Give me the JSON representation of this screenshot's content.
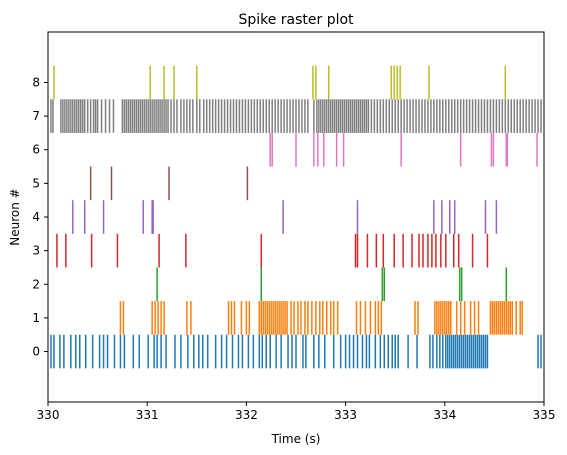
{
  "chart_data": {
    "type": "raster",
    "title": "Spike raster plot",
    "xlabel": "Time (s)",
    "ylabel": "Neuron #",
    "xlim": [
      330,
      335
    ],
    "ylim": [
      -1.5,
      9.5
    ],
    "x_ticks": [
      "330",
      "331",
      "332",
      "333",
      "334",
      "335"
    ],
    "y_ticks": [
      "0",
      "1",
      "2",
      "3",
      "4",
      "5",
      "6",
      "7",
      "8"
    ],
    "grid": false,
    "series": [
      {
        "color": "#1f77b4",
        "spikes": [
          330.03,
          330.06,
          330.12,
          330.16,
          330.23,
          330.28,
          330.32,
          330.38,
          330.45,
          330.52,
          330.56,
          330.6,
          330.67,
          330.73,
          330.77,
          330.86,
          330.92,
          331.01,
          331.07,
          331.1,
          331.14,
          331.19,
          331.28,
          331.34,
          331.41,
          331.47,
          331.52,
          331.56,
          331.61,
          331.69,
          331.75,
          331.8,
          331.86,
          331.92,
          331.96,
          332.02,
          332.07,
          332.13,
          332.16,
          332.2,
          332.24,
          332.3,
          332.35,
          332.42,
          332.46,
          332.5,
          332.57,
          332.6,
          332.68,
          332.73,
          332.79,
          332.88,
          332.95,
          333.0,
          333.04,
          333.08,
          333.12,
          333.17,
          333.21,
          333.24,
          333.3,
          333.35,
          333.39,
          333.43,
          333.47,
          333.5,
          333.53,
          333.63,
          333.72,
          333.85,
          333.88,
          333.92,
          333.95,
          333.98,
          334.01,
          334.03,
          334.05,
          334.07,
          334.09,
          334.11,
          334.13,
          334.15,
          334.17,
          334.19,
          334.21,
          334.23,
          334.25,
          334.27,
          334.29,
          334.31,
          334.33,
          334.35,
          334.37,
          334.39,
          334.41,
          334.43,
          334.94,
          334.97
        ]
      },
      {
        "color": "#ff7f0e",
        "spikes": [
          330.73,
          330.76,
          331.05,
          331.08,
          331.11,
          331.14,
          331.17,
          331.4,
          331.44,
          331.82,
          331.85,
          331.88,
          331.95,
          332.0,
          332.03,
          332.13,
          332.15,
          332.17,
          332.19,
          332.21,
          332.23,
          332.25,
          332.27,
          332.29,
          332.31,
          332.33,
          332.35,
          332.37,
          332.39,
          332.41,
          332.45,
          332.48,
          332.52,
          332.55,
          332.59,
          332.62,
          332.66,
          332.7,
          332.74,
          332.77,
          332.81,
          332.85,
          332.88,
          332.92,
          333.11,
          333.15,
          333.2,
          333.25,
          333.3,
          333.33,
          333.36,
          333.7,
          333.73,
          333.9,
          333.92,
          333.94,
          333.96,
          333.98,
          334.0,
          334.02,
          334.04,
          334.06,
          334.12,
          334.16,
          334.2,
          334.26,
          334.3,
          334.34,
          334.46,
          334.48,
          334.5,
          334.52,
          334.54,
          334.56,
          334.58,
          334.6,
          334.62,
          334.64,
          334.66,
          334.68,
          334.72,
          334.76,
          334.78
        ]
      },
      {
        "color": "#2ca02c",
        "spikes": [
          331.1,
          332.15,
          333.37,
          333.39,
          334.15,
          334.17,
          334.62
        ]
      },
      {
        "color": "#d62728",
        "spikes": [
          330.09,
          330.18,
          330.44,
          330.7,
          331.12,
          331.39,
          332.15,
          333.1,
          333.12,
          333.22,
          333.31,
          333.38,
          333.49,
          333.58,
          333.67,
          333.74,
          333.78,
          333.83,
          333.87,
          333.91,
          333.96,
          334.01,
          334.09,
          334.14,
          334.28,
          334.43
        ]
      },
      {
        "color": "#9467bd",
        "spikes": [
          330.25,
          330.37,
          330.56,
          330.96,
          331.05,
          331.06,
          332.37,
          333.12,
          333.89,
          333.97,
          334.05,
          334.1,
          334.41,
          334.52
        ]
      },
      {
        "color": "#8c564b",
        "spikes": [
          330.43,
          330.64,
          331.22,
          332.01
        ]
      },
      {
        "color": "#e377c2",
        "spikes": [
          332.24,
          332.26,
          332.5,
          332.68,
          332.72,
          332.78,
          332.91,
          332.98,
          333.56,
          334.16,
          334.47,
          334.49,
          334.62,
          334.63,
          334.93
        ]
      },
      {
        "color": "#7f7f7f",
        "spikes": [
          330.03,
          330.05,
          330.13,
          330.15,
          330.17,
          330.19,
          330.21,
          330.23,
          330.25,
          330.27,
          330.29,
          330.31,
          330.33,
          330.35,
          330.37,
          330.4,
          330.43,
          330.46,
          330.48,
          330.5,
          330.54,
          330.58,
          330.62,
          330.66,
          330.75,
          330.77,
          330.79,
          330.81,
          330.83,
          330.85,
          330.87,
          330.89,
          330.91,
          330.93,
          330.95,
          330.97,
          330.99,
          331.01,
          331.03,
          331.05,
          331.07,
          331.09,
          331.11,
          331.13,
          331.15,
          331.17,
          331.19,
          331.21,
          331.24,
          331.27,
          331.3,
          331.34,
          331.37,
          331.4,
          331.43,
          331.46,
          331.5,
          331.53,
          331.57,
          331.6,
          331.63,
          331.66,
          331.69,
          331.72,
          331.75,
          331.78,
          331.81,
          331.84,
          331.87,
          331.9,
          331.93,
          331.96,
          331.99,
          332.02,
          332.05,
          332.08,
          332.11,
          332.14,
          332.17,
          332.2,
          332.23,
          332.26,
          332.29,
          332.32,
          332.35,
          332.38,
          332.41,
          332.44,
          332.47,
          332.5,
          332.53,
          332.56,
          332.59,
          332.62,
          332.68,
          332.71,
          332.73,
          332.75,
          332.77,
          332.79,
          332.81,
          332.83,
          332.85,
          332.87,
          332.89,
          332.91,
          332.93,
          332.95,
          332.97,
          332.99,
          333.01,
          333.03,
          333.05,
          333.07,
          333.09,
          333.11,
          333.13,
          333.15,
          333.17,
          333.19,
          333.21,
          333.23,
          333.26,
          333.29,
          333.32,
          333.35,
          333.38,
          333.41,
          333.44,
          333.47,
          333.5,
          333.53,
          333.56,
          333.59,
          333.62,
          333.65,
          333.68,
          333.71,
          333.74,
          333.77,
          333.8,
          333.83,
          333.86,
          333.89,
          333.92,
          333.95,
          333.98,
          334.01,
          334.04,
          334.07,
          334.1,
          334.13,
          334.16,
          334.19,
          334.22,
          334.25,
          334.28,
          334.31,
          334.34,
          334.37,
          334.4,
          334.43,
          334.46,
          334.49,
          334.52,
          334.55,
          334.58,
          334.61,
          334.64,
          334.67,
          334.7,
          334.73,
          334.76,
          334.79,
          334.82,
          334.85,
          334.88,
          334.91,
          334.94,
          334.97
        ]
      },
      {
        "color": "#bcbd22",
        "spikes": [
          330.06,
          331.03,
          331.17,
          331.27,
          331.5,
          332.67,
          332.7,
          332.83,
          333.46,
          333.49,
          333.52,
          333.55,
          333.84,
          334.61
        ]
      }
    ]
  }
}
